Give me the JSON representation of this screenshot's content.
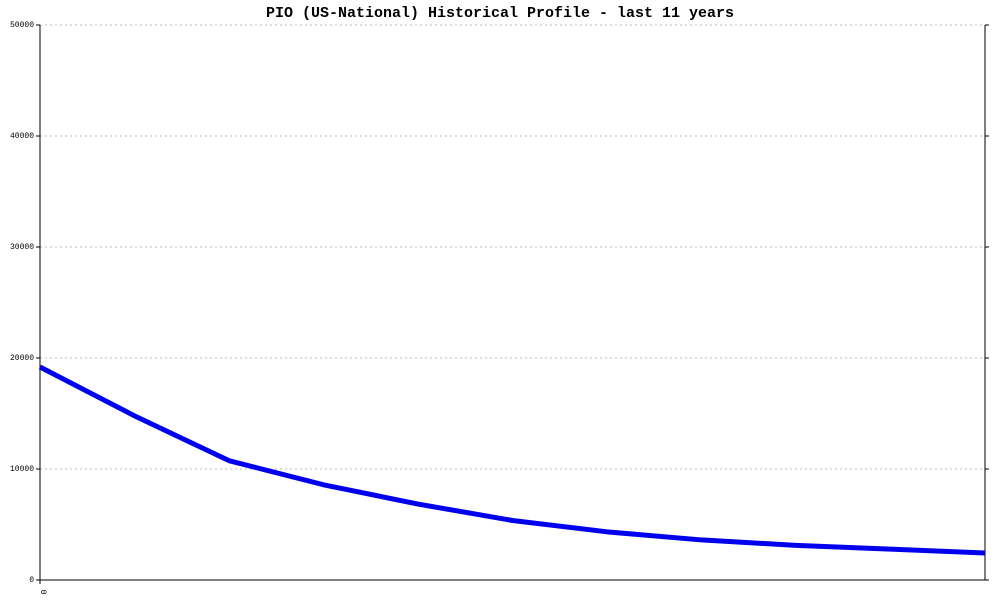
{
  "chart_data": {
    "type": "line",
    "title": "PIO (US-National) Historical Profile - last 11 years",
    "categories": [
      "0",
      null,
      null,
      null,
      null,
      null,
      null,
      null,
      null,
      null,
      null
    ],
    "series": [
      {
        "name": "PIO",
        "color": "#0000ee",
        "values": [
          19190,
          14790,
          10750,
          8580,
          6840,
          5360,
          4340,
          3610,
          3120,
          2780,
          2430
        ]
      }
    ],
    "ylim": [
      0,
      50000
    ],
    "yticks": [
      0,
      10000,
      20000,
      30000,
      40000,
      50000
    ],
    "grid": true
  }
}
